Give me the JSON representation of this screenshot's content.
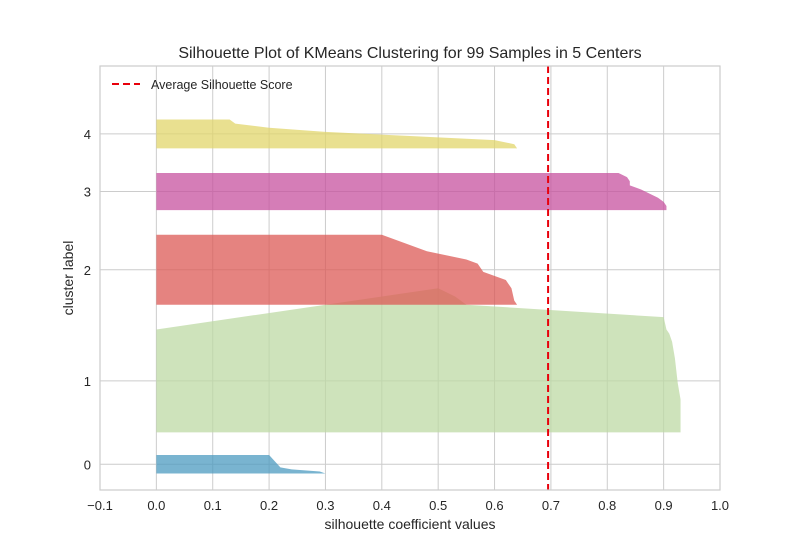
{
  "chart_data": {
    "type": "area",
    "title": "Silhouette Plot of KMeans Clustering for 99 Samples in 5 Centers",
    "xlabel": "silhouette coefficient values",
    "ylabel": "cluster label",
    "xlim": [
      -0.1,
      1.0
    ],
    "ylim": [
      -4,
      99
    ],
    "x_ticks": [
      -0.1,
      0.0,
      0.1,
      0.2,
      0.3,
      0.4,
      0.5,
      0.6,
      0.7,
      0.8,
      0.9,
      1.0
    ],
    "x_tick_labels": [
      "−0.1",
      "0.0",
      "0.1",
      "0.2",
      "0.3",
      "0.4",
      "0.5",
      "0.6",
      "0.7",
      "0.8",
      "0.9",
      "1.0"
    ],
    "grid": true,
    "legend": {
      "position": "upper-left",
      "entries": [
        "Average Silhouette Score"
      ]
    },
    "average_silhouette_score": 0.695,
    "average_line_color": "#e8000b",
    "clusters": [
      {
        "label": "0",
        "color": "#4c9bc0",
        "y_start": 0,
        "y_end": 4.5,
        "profile": [
          [
            0,
            0.3
          ],
          [
            0.5,
            0.29
          ],
          [
            1,
            0.24
          ],
          [
            1.5,
            0.22
          ],
          [
            4.5,
            0.2
          ]
        ]
      },
      {
        "label": "1",
        "color": "#bdd9a4",
        "y_start": 10,
        "y_end": 35,
        "profile": [
          [
            0,
            0.93
          ],
          [
            8,
            0.93
          ],
          [
            12,
            0.925
          ],
          [
            18,
            0.92
          ],
          [
            22,
            0.915
          ],
          [
            24,
            0.91
          ],
          [
            25,
            0.905
          ],
          [
            28,
            0.9
          ],
          [
            31,
            0.55
          ],
          [
            33,
            0.53
          ],
          [
            35,
            0.5
          ]
        ]
      },
      {
        "label": "2",
        "color": "#dc5a55",
        "y_start": 41,
        "y_end": 58,
        "profile": [
          [
            0,
            0.64
          ],
          [
            1,
            0.635
          ],
          [
            4,
            0.63
          ],
          [
            6,
            0.62
          ],
          [
            8,
            0.58
          ],
          [
            10,
            0.57
          ],
          [
            11,
            0.55
          ],
          [
            13,
            0.48
          ],
          [
            15,
            0.44
          ],
          [
            17,
            0.4
          ]
        ]
      },
      {
        "label": "3",
        "color": "#c7519f",
        "y_start": 64,
        "y_end": 73,
        "profile": [
          [
            0,
            0.905
          ],
          [
            1,
            0.905
          ],
          [
            2,
            0.9
          ],
          [
            3,
            0.89
          ],
          [
            5,
            0.86
          ],
          [
            6,
            0.84
          ],
          [
            7,
            0.84
          ],
          [
            8,
            0.835
          ],
          [
            9,
            0.82
          ]
        ]
      },
      {
        "label": "4",
        "color": "#e1d66b",
        "y_start": 79,
        "y_end": 86,
        "profile": [
          [
            0,
            0.64
          ],
          [
            1,
            0.635
          ],
          [
            2,
            0.6
          ],
          [
            3,
            0.45
          ],
          [
            4,
            0.3
          ],
          [
            5,
            0.2
          ],
          [
            6,
            0.14
          ],
          [
            7,
            0.13
          ]
        ]
      }
    ]
  }
}
